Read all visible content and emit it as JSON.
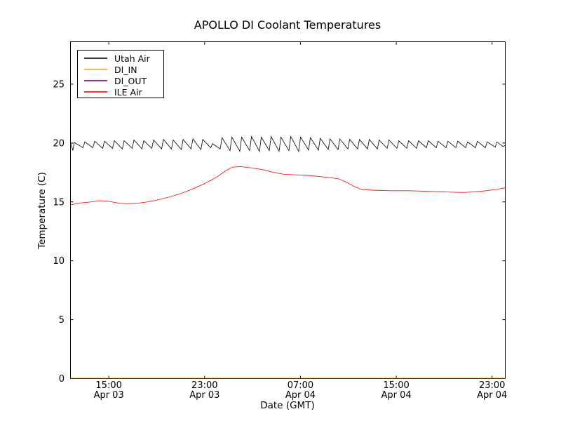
{
  "figure": {
    "background": "#ffffff"
  },
  "chart_data": {
    "type": "line",
    "title": "APOLLO DI Coolant Temperatures",
    "xlabel": "Date (GMT)",
    "ylabel": "Temperature (C)",
    "grid": false,
    "x_axis": {
      "unit": "hours since Apr 03 12:00 GMT",
      "range": [
        -0.2,
        36.1
      ],
      "ticks": [
        {
          "t": 3,
          "time": "15:00",
          "date": "Apr 03"
        },
        {
          "t": 11,
          "time": "23:00",
          "date": "Apr 03"
        },
        {
          "t": 19,
          "time": "07:00",
          "date": "Apr 04"
        },
        {
          "t": 27,
          "time": "15:00",
          "date": "Apr 04"
        },
        {
          "t": 35,
          "time": "23:00",
          "date": "Apr 04"
        }
      ]
    },
    "y_axis": {
      "range": [
        0,
        28.6
      ],
      "ticks": [
        0,
        5,
        10,
        15,
        20,
        25
      ]
    },
    "legend": {
      "position": "upper-left",
      "entries": [
        "Utah Air",
        "DI_IN",
        "DI_OUT",
        "ILE Air"
      ]
    },
    "series": [
      {
        "name": "Utah Air",
        "color": "#000000",
        "points": [
          [
            -0.2,
            20.0
          ],
          [
            0.0,
            19.4
          ],
          [
            0.12,
            20.05
          ],
          [
            0.85,
            19.6
          ],
          [
            1.0,
            20.1
          ],
          [
            1.67,
            19.6
          ],
          [
            1.82,
            20.15
          ],
          [
            2.49,
            19.55
          ],
          [
            2.64,
            20.15
          ],
          [
            3.31,
            19.55
          ],
          [
            3.46,
            20.2
          ],
          [
            4.13,
            19.5
          ],
          [
            4.28,
            20.2
          ],
          [
            4.95,
            19.55
          ],
          [
            5.1,
            20.25
          ],
          [
            5.77,
            19.5
          ],
          [
            5.92,
            20.2
          ],
          [
            6.59,
            19.55
          ],
          [
            6.74,
            20.25
          ],
          [
            7.41,
            19.5
          ],
          [
            7.56,
            20.3
          ],
          [
            8.23,
            19.5
          ],
          [
            8.38,
            20.25
          ],
          [
            9.05,
            19.45
          ],
          [
            9.2,
            20.3
          ],
          [
            9.87,
            19.5
          ],
          [
            10.02,
            20.35
          ],
          [
            10.69,
            19.45
          ],
          [
            10.84,
            20.3
          ],
          [
            11.51,
            19.6
          ],
          [
            11.66,
            19.95
          ],
          [
            12.3,
            19.5
          ],
          [
            12.45,
            20.45
          ],
          [
            13.12,
            19.35
          ],
          [
            13.27,
            20.5
          ],
          [
            13.94,
            19.3
          ],
          [
            14.09,
            20.5
          ],
          [
            14.76,
            19.35
          ],
          [
            14.91,
            20.55
          ],
          [
            15.58,
            19.3
          ],
          [
            15.73,
            20.5
          ],
          [
            16.4,
            19.35
          ],
          [
            16.55,
            20.55
          ],
          [
            17.22,
            19.3
          ],
          [
            17.37,
            20.5
          ],
          [
            18.04,
            19.35
          ],
          [
            18.19,
            20.55
          ],
          [
            18.86,
            19.3
          ],
          [
            19.01,
            20.5
          ],
          [
            19.68,
            19.4
          ],
          [
            19.83,
            20.45
          ],
          [
            20.5,
            19.4
          ],
          [
            20.65,
            20.4
          ],
          [
            21.32,
            19.45
          ],
          [
            21.47,
            20.35
          ],
          [
            22.14,
            19.45
          ],
          [
            22.29,
            20.35
          ],
          [
            22.96,
            19.5
          ],
          [
            23.11,
            20.3
          ],
          [
            23.78,
            19.5
          ],
          [
            23.93,
            20.3
          ],
          [
            24.6,
            19.5
          ],
          [
            24.75,
            20.3
          ],
          [
            25.42,
            19.5
          ],
          [
            25.57,
            20.25
          ],
          [
            26.24,
            19.55
          ],
          [
            26.39,
            20.25
          ],
          [
            27.06,
            19.55
          ],
          [
            27.21,
            20.2
          ],
          [
            27.88,
            19.55
          ],
          [
            28.03,
            20.2
          ],
          [
            28.7,
            19.55
          ],
          [
            28.85,
            20.2
          ],
          [
            29.52,
            19.6
          ],
          [
            29.67,
            20.2
          ],
          [
            30.34,
            19.6
          ],
          [
            30.49,
            20.15
          ],
          [
            31.16,
            19.6
          ],
          [
            31.31,
            20.15
          ],
          [
            31.98,
            19.6
          ],
          [
            32.13,
            20.15
          ],
          [
            32.8,
            19.6
          ],
          [
            32.95,
            20.1
          ],
          [
            33.62,
            19.6
          ],
          [
            33.77,
            20.15
          ],
          [
            34.44,
            19.6
          ],
          [
            34.59,
            20.1
          ],
          [
            35.26,
            19.65
          ],
          [
            35.41,
            20.1
          ],
          [
            35.9,
            19.7
          ],
          [
            36.1,
            19.8
          ]
        ]
      },
      {
        "name": "DI_IN",
        "color": "#ffa500",
        "points": [
          [
            -0.2,
            0.03
          ],
          [
            36.1,
            0.03
          ]
        ]
      },
      {
        "name": "DI_OUT",
        "color": "#800080",
        "points": [
          [
            -0.2,
            0.0
          ],
          [
            36.1,
            0.0
          ]
        ]
      },
      {
        "name": "ILE Air",
        "color": "#ff0000",
        "points": [
          [
            -0.2,
            14.75
          ],
          [
            0.5,
            14.9
          ],
          [
            1.5,
            15.0
          ],
          [
            2.2,
            15.1
          ],
          [
            3.0,
            15.05
          ],
          [
            3.8,
            14.9
          ],
          [
            4.5,
            14.85
          ],
          [
            5.5,
            14.9
          ],
          [
            6.2,
            15.0
          ],
          [
            7.0,
            15.15
          ],
          [
            8.0,
            15.4
          ],
          [
            9.0,
            15.7
          ],
          [
            10.0,
            16.1
          ],
          [
            11.0,
            16.55
          ],
          [
            12.0,
            17.1
          ],
          [
            12.7,
            17.6
          ],
          [
            13.3,
            17.95
          ],
          [
            14.0,
            18.0
          ],
          [
            14.8,
            17.9
          ],
          [
            15.8,
            17.75
          ],
          [
            16.8,
            17.5
          ],
          [
            17.6,
            17.35
          ],
          [
            18.6,
            17.3
          ],
          [
            19.6,
            17.25
          ],
          [
            20.6,
            17.15
          ],
          [
            21.6,
            17.05
          ],
          [
            22.2,
            16.95
          ],
          [
            22.8,
            16.7
          ],
          [
            23.5,
            16.3
          ],
          [
            24.1,
            16.05
          ],
          [
            25.0,
            16.0
          ],
          [
            26.5,
            15.95
          ],
          [
            28.0,
            15.95
          ],
          [
            29.5,
            15.9
          ],
          [
            31.0,
            15.85
          ],
          [
            32.5,
            15.8
          ],
          [
            33.5,
            15.85
          ],
          [
            34.5,
            15.95
          ],
          [
            35.3,
            16.05
          ],
          [
            36.1,
            16.2
          ]
        ]
      }
    ]
  }
}
